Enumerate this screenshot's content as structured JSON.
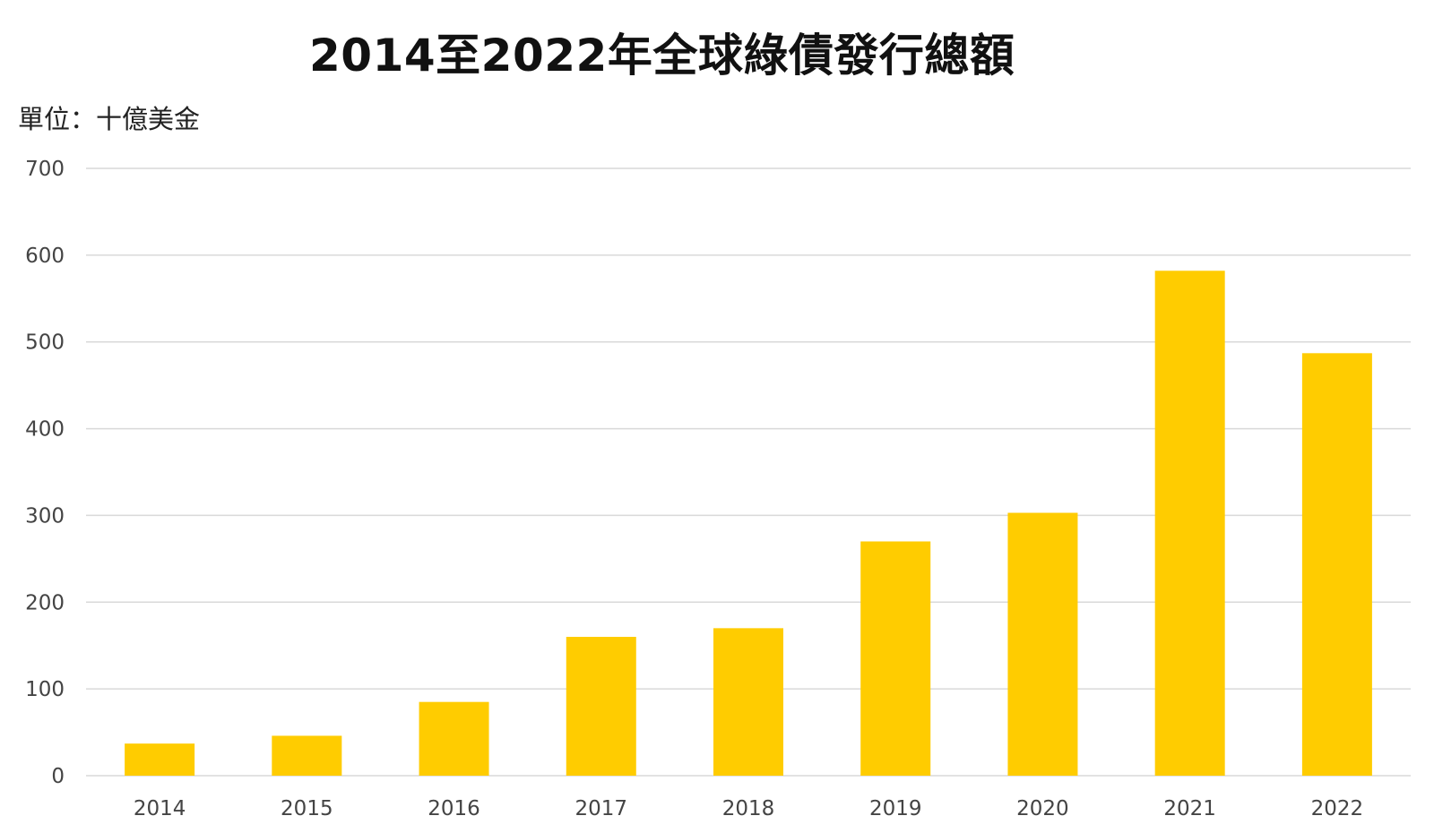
{
  "colors": {
    "bar": "#FFCC00",
    "grid": "#D9D9D9",
    "text": "#111111",
    "tick": "#444444"
  },
  "chart_data": {
    "type": "bar",
    "title": "2014至2022年全球綠債發行總額",
    "unit": "單位：十億美金",
    "categories": [
      "2014",
      "2015",
      "2016",
      "2017",
      "2018",
      "2019",
      "2020",
      "2021",
      "2022"
    ],
    "values": [
      37,
      46,
      85,
      160,
      170,
      270,
      303,
      582,
      487
    ],
    "ylim": [
      0,
      700
    ],
    "yticks": [
      0,
      100,
      200,
      300,
      400,
      500,
      600,
      700
    ],
    "grid": true,
    "legend": "none"
  }
}
